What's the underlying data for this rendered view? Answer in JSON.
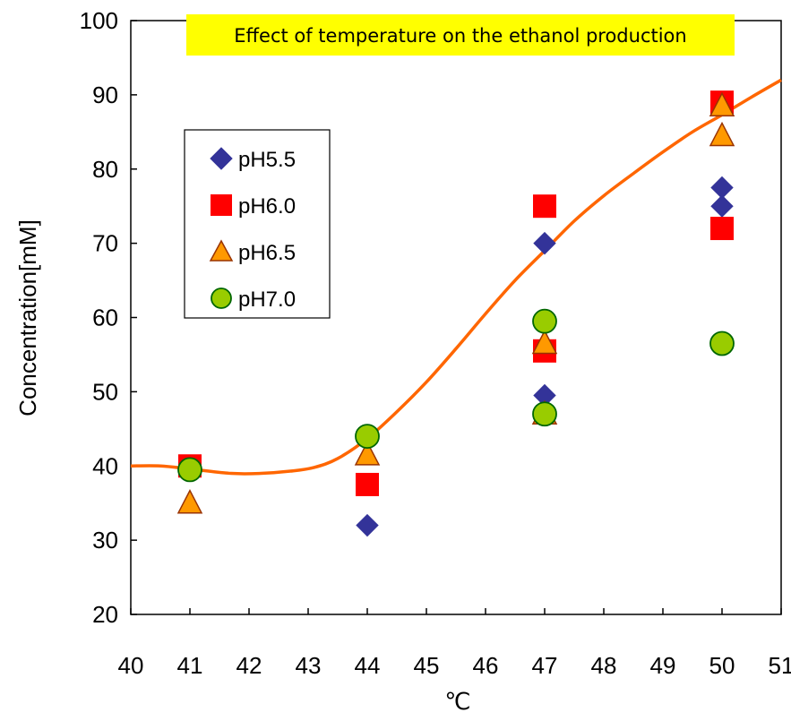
{
  "chart_data": {
    "type": "scatter",
    "title": "Effect of temperature on the ethanol production",
    "xlabel": "℃",
    "ylabel": "Concentration[mM]",
    "xlim": [
      40,
      51
    ],
    "ylim": [
      20,
      100
    ],
    "xticks": [
      40,
      41,
      42,
      43,
      44,
      45,
      46,
      47,
      48,
      49,
      50,
      51
    ],
    "yticks": [
      20,
      30,
      40,
      50,
      60,
      70,
      80,
      90,
      100
    ],
    "grid": false,
    "legend_position": "upper-left",
    "series": [
      {
        "name": "pH5.5",
        "marker": "diamond",
        "color": "#333399",
        "x": [
          41,
          44,
          47,
          47,
          50,
          50
        ],
        "y": [
          39.5,
          32,
          70,
          49.5,
          77.5,
          75
        ]
      },
      {
        "name": "pH6.0",
        "marker": "square",
        "color": "#ff0000",
        "x": [
          41,
          44,
          47,
          47,
          50,
          50
        ],
        "y": [
          40,
          37.5,
          75,
          55.5,
          89,
          72
        ]
      },
      {
        "name": "pH6.5",
        "marker": "triangle",
        "color": "#ff9900",
        "x": [
          41,
          44,
          47,
          47,
          50,
          50
        ],
        "y": [
          35,
          41.5,
          56.5,
          47,
          88.5,
          84.5
        ]
      },
      {
        "name": "pH7.0",
        "marker": "circle",
        "color": "#99cc00",
        "x": [
          41,
          44,
          47,
          47,
          50
        ],
        "y": [
          39.5,
          44,
          59.5,
          47,
          56.5
        ]
      }
    ],
    "trend_line": {
      "type": "line",
      "color": "#ff6600",
      "x": [
        40,
        40.5,
        41,
        41.7,
        42.2,
        42.7,
        43.1,
        43.5,
        44,
        44.5,
        45,
        45.5,
        46,
        46.5,
        47,
        47.5,
        48,
        48.5,
        49,
        49.5,
        50,
        50.5,
        51
      ],
      "y": [
        40,
        40,
        39.6,
        39,
        39,
        39.3,
        39.8,
        41,
        43.7,
        47.3,
        51.3,
        55.8,
        60.5,
        65,
        69,
        73,
        76.4,
        79.4,
        82.3,
        85,
        87.3,
        89.7,
        92
      ]
    }
  }
}
